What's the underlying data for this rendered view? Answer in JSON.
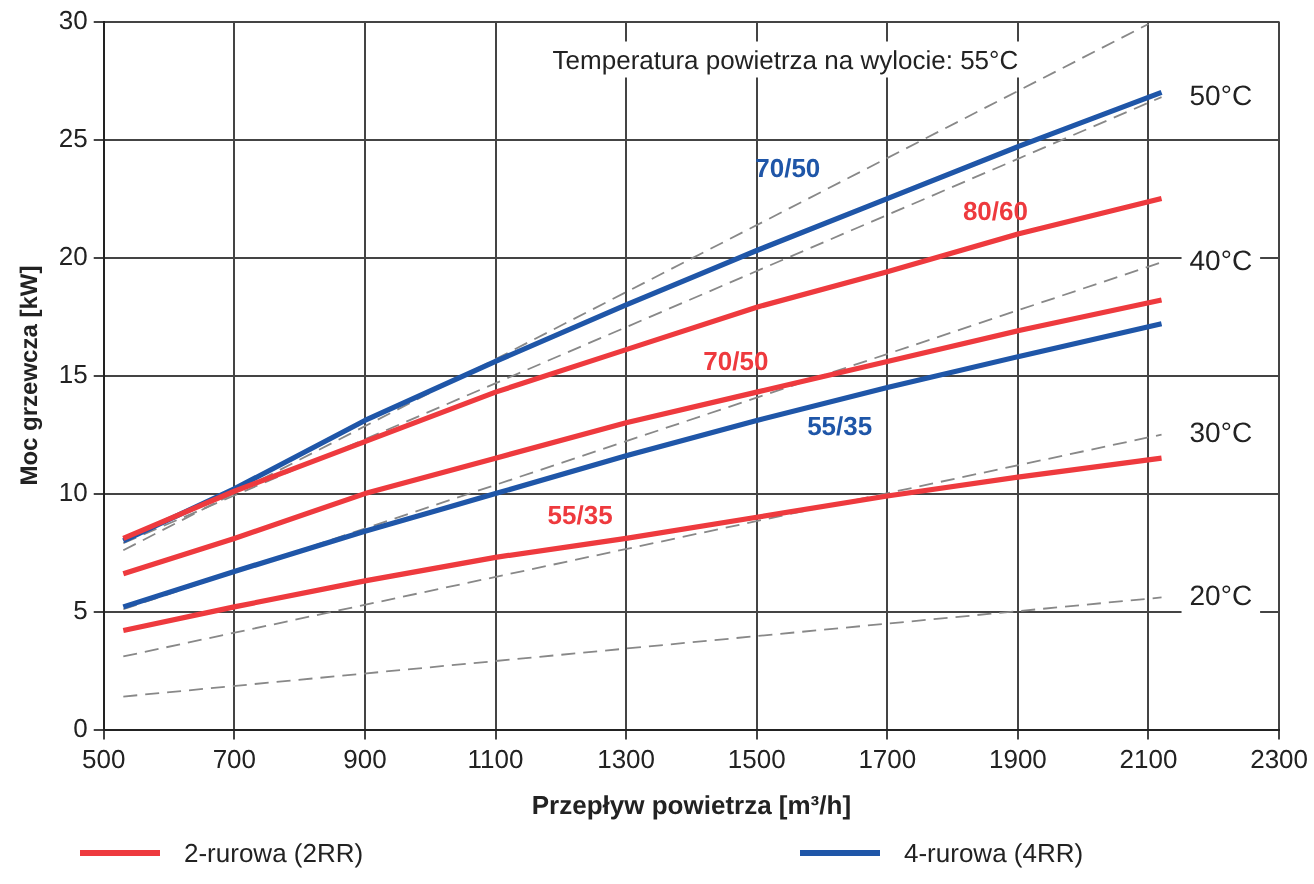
{
  "chart_data": {
    "type": "line",
    "xlabel": "Przepływ powietrza [m³/h]",
    "ylabel": "Moc grzewcza [kW]",
    "xlim": [
      500,
      2300
    ],
    "xticks": [
      500,
      700,
      900,
      1100,
      1300,
      1500,
      1700,
      1900,
      2100,
      2300
    ],
    "ylim": [
      0,
      30
    ],
    "yticks": [
      0,
      5,
      10,
      15,
      20,
      25,
      30
    ],
    "grid": true,
    "legend": "bottom",
    "marker": "none",
    "series": [
      {
        "name": "80/60",
        "color": "#ee3a3e",
        "x": [
          530,
          700,
          900,
          1100,
          1300,
          1500,
          1700,
          1900,
          2120
        ],
        "values": [
          8.1,
          10.1,
          12.2,
          14.3,
          16.1,
          17.9,
          19.4,
          21.0,
          22.5
        ]
      },
      {
        "name": "70/50",
        "color": "#ee3a3e",
        "x": [
          530,
          700,
          900,
          1100,
          1300,
          1500,
          1700,
          1900,
          2120
        ],
        "values": [
          6.6,
          8.1,
          10.0,
          11.5,
          13.0,
          14.3,
          15.6,
          16.9,
          18.2
        ]
      },
      {
        "name": "55/35",
        "color": "#ee3a3e",
        "x": [
          530,
          700,
          900,
          1100,
          1300,
          1500,
          1700,
          1900,
          2120
        ],
        "values": [
          4.2,
          5.2,
          6.3,
          7.3,
          8.1,
          9.0,
          9.9,
          10.7,
          11.5
        ]
      },
      {
        "name": "70/50",
        "color": "#1f56a8",
        "x": [
          530,
          700,
          900,
          1100,
          1300,
          1500,
          1700,
          1900,
          2120
        ],
        "values": [
          8.0,
          10.2,
          13.1,
          15.6,
          18.0,
          20.3,
          22.5,
          24.7,
          27.0
        ]
      },
      {
        "name": "55/35",
        "color": "#1f56a8",
        "x": [
          530,
          700,
          900,
          1100,
          1300,
          1500,
          1700,
          1900,
          2120
        ],
        "values": [
          5.2,
          6.7,
          8.4,
          10.0,
          11.6,
          13.1,
          14.5,
          15.8,
          17.2
        ]
      },
      {
        "color": "#888888",
        "line_style": "dashed",
        "x": [
          530,
          2100
        ],
        "values": [
          7.6,
          29.9
        ]
      },
      {
        "name": "50°C",
        "color": "#888888",
        "line_style": "dashed",
        "x": [
          530,
          2120
        ],
        "values": [
          7.9,
          26.8
        ]
      },
      {
        "name": "40°C",
        "color": "#888888",
        "line_style": "dashed",
        "x": [
          530,
          2120
        ],
        "values": [
          5.1,
          19.8
        ]
      },
      {
        "name": "30°C",
        "color": "#888888",
        "line_style": "dashed",
        "x": [
          530,
          2120
        ],
        "values": [
          3.1,
          12.5
        ]
      },
      {
        "name": "20°C",
        "color": "#888888",
        "line_style": "dashed",
        "x": [
          530,
          2120
        ],
        "values": [
          1.4,
          5.6
        ]
      },
      {
        "name": "2-rurowa (2RR)",
        "color": "#ee3a3e"
      },
      {
        "name": "4-rurowa (4RR)",
        "color": "#1f56a8"
      }
    ],
    "annotations": [
      "Temperatura powietrza na wylocie: 55°C"
    ]
  }
}
